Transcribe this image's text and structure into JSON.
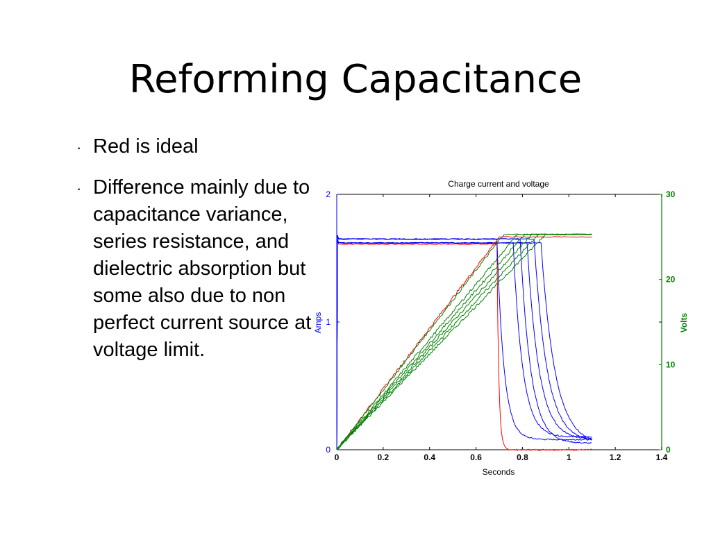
{
  "slide": {
    "title": "Reforming Capacitance",
    "bullets": [
      "Red is ideal",
      "Difference mainly due to capacitance variance, series resistance, and dielectric absorption but some also due to non perfect current source at voltage limit."
    ],
    "bullet_glyph": "·"
  },
  "chart_data": {
    "type": "line",
    "title": "Charge current and voltage",
    "xlabel": "Seconds",
    "ylabel_left": "Amps",
    "ylabel_right": "Volts",
    "xlim": [
      0,
      1.4
    ],
    "ylim_left": [
      0,
      2
    ],
    "ylim_right": [
      0,
      30
    ],
    "xticks": [
      "0",
      "0.2",
      "0.4",
      "0.6",
      "0.8",
      "1",
      "1.2",
      "1.4"
    ],
    "yticks_left": [
      "0",
      "1",
      "2"
    ],
    "yticks_right": [
      "0",
      "10",
      "20",
      "30"
    ],
    "grid": false,
    "colors": {
      "current": "#0000ff",
      "voltage": "#008000",
      "ideal": "#ff0000",
      "axis_right": "#008000",
      "axis_left": "#0000ff"
    },
    "series": [
      {
        "kind": "current",
        "color": "#ff0000",
        "plateau": 1.61,
        "drop_x": 0.69,
        "end_y": 0.0,
        "tau": 0.008
      },
      {
        "kind": "current",
        "color": "#0000ff",
        "plateau": 1.65,
        "drop_x": 0.69,
        "end_y": 0.08,
        "tau": 0.03
      },
      {
        "kind": "current",
        "color": "#0000ff",
        "plateau": 1.62,
        "drop_x": 0.76,
        "end_y": 0.1,
        "tau": 0.04
      },
      {
        "kind": "current",
        "color": "#0000ff",
        "plateau": 1.65,
        "drop_x": 0.79,
        "end_y": 0.05,
        "tau": 0.045
      },
      {
        "kind": "current",
        "color": "#0000ff",
        "plateau": 1.62,
        "drop_x": 0.82,
        "end_y": 0.08,
        "tau": 0.05
      },
      {
        "kind": "current",
        "color": "#0000ff",
        "plateau": 1.65,
        "drop_x": 0.85,
        "end_y": 0.06,
        "tau": 0.055
      },
      {
        "kind": "current",
        "color": "#0000ff",
        "plateau": 1.62,
        "drop_x": 0.88,
        "end_y": 0.04,
        "tau": 0.06
      },
      {
        "kind": "voltage",
        "color": "#ff0000",
        "end_x": 0.7,
        "final": 25.0
      },
      {
        "kind": "voltage",
        "color": "#008000",
        "end_x": 0.72,
        "final": 25.3
      },
      {
        "kind": "voltage",
        "color": "#008000",
        "end_x": 0.78,
        "final": 25.3
      },
      {
        "kind": "voltage",
        "color": "#008000",
        "end_x": 0.81,
        "final": 25.3
      },
      {
        "kind": "voltage",
        "color": "#008000",
        "end_x": 0.84,
        "final": 25.3
      },
      {
        "kind": "voltage",
        "color": "#008000",
        "end_x": 0.87,
        "final": 25.3
      },
      {
        "kind": "voltage",
        "color": "#008000",
        "end_x": 0.9,
        "final": 25.3
      }
    ],
    "series_end_x": 1.1
  }
}
